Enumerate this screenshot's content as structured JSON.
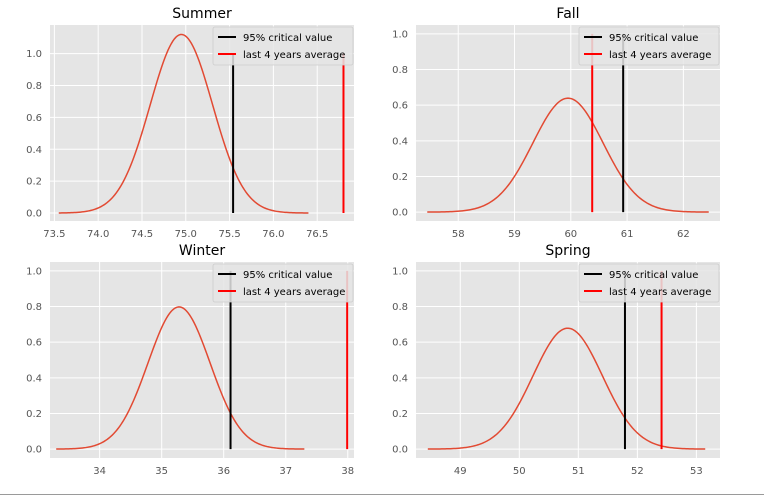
{
  "figure": {
    "colors": {
      "panel_bg": "#e5e5e5",
      "grid": "#ffffff",
      "tick_text": "#555555",
      "title_text": "#000000",
      "curve": "#e24a33",
      "critical": "#000000",
      "average": "#ff0000"
    },
    "legend_labels": [
      "95% critical value",
      "last 4 years average"
    ]
  },
  "chart_data": [
    {
      "type": "line",
      "title": "Summer",
      "xlabel": "",
      "ylabel": "",
      "xlim": [
        73.45,
        76.92
      ],
      "ylim": [
        -0.05,
        1.18
      ],
      "xticks": [
        {
          "v": 73.5,
          "label": "73.5"
        },
        {
          "v": 74.0,
          "label": "74.0"
        },
        {
          "v": 74.5,
          "label": "74.5"
        },
        {
          "v": 75.0,
          "label": "75.0"
        },
        {
          "v": 75.5,
          "label": "75.5"
        },
        {
          "v": 76.0,
          "label": "76.0"
        },
        {
          "v": 76.5,
          "label": "76.5"
        }
      ],
      "yticks": [
        {
          "v": 0,
          "label": "0.0"
        },
        {
          "v": 0.2,
          "label": "0.2"
        },
        {
          "v": 0.4,
          "label": "0.4"
        },
        {
          "v": 0.6,
          "label": "0.6"
        },
        {
          "v": 0.8,
          "label": "0.8"
        },
        {
          "v": 1.0,
          "label": "1.0"
        }
      ],
      "curve": {
        "mean": 74.95,
        "sd": 0.356,
        "x_range": [
          73.55,
          76.4
        ]
      },
      "critical_value": {
        "x": 75.54,
        "y": [
          0,
          1.0
        ]
      },
      "average": {
        "x": 76.8,
        "y": [
          0,
          1.0
        ]
      },
      "legend": "upper right"
    },
    {
      "type": "line",
      "title": "Fall",
      "xlabel": "",
      "ylabel": "",
      "xlim": [
        57.25,
        62.65
      ],
      "ylim": [
        -0.05,
        1.05
      ],
      "xticks": [
        {
          "v": 58,
          "label": "58"
        },
        {
          "v": 59,
          "label": "59"
        },
        {
          "v": 60,
          "label": "60"
        },
        {
          "v": 61,
          "label": "61"
        },
        {
          "v": 62,
          "label": "62"
        }
      ],
      "yticks": [
        {
          "v": 0,
          "label": "0.0"
        },
        {
          "v": 0.2,
          "label": "0.2"
        },
        {
          "v": 0.4,
          "label": "0.4"
        },
        {
          "v": 0.6,
          "label": "0.6"
        },
        {
          "v": 0.8,
          "label": "0.8"
        },
        {
          "v": 1.0,
          "label": "1.0"
        }
      ],
      "curve": {
        "mean": 59.95,
        "sd": 0.624,
        "x_range": [
          57.45,
          62.45
        ]
      },
      "critical_value": {
        "x": 60.93,
        "y": [
          0,
          1.0
        ]
      },
      "average": {
        "x": 60.38,
        "y": [
          0,
          1.0
        ]
      },
      "legend": "upper right"
    },
    {
      "type": "line",
      "title": "Winter",
      "xlabel": "",
      "ylabel": "",
      "xlim": [
        33.2,
        38.1
      ],
      "ylim": [
        -0.05,
        1.05
      ],
      "xticks": [
        {
          "v": 34,
          "label": "34"
        },
        {
          "v": 35,
          "label": "35"
        },
        {
          "v": 36,
          "label": "36"
        },
        {
          "v": 37,
          "label": "37"
        },
        {
          "v": 38,
          "label": "38"
        }
      ],
      "yticks": [
        {
          "v": 0,
          "label": "0.0"
        },
        {
          "v": 0.2,
          "label": "0.2"
        },
        {
          "v": 0.4,
          "label": "0.4"
        },
        {
          "v": 0.6,
          "label": "0.6"
        },
        {
          "v": 0.8,
          "label": "0.8"
        },
        {
          "v": 1.0,
          "label": "1.0"
        }
      ],
      "curve": {
        "mean": 35.28,
        "sd": 0.5,
        "x_range": [
          33.3,
          37.3
        ]
      },
      "critical_value": {
        "x": 36.11,
        "y": [
          0,
          1.0
        ]
      },
      "average": {
        "x": 37.99,
        "y": [
          0,
          1.0
        ]
      },
      "legend": "upper right"
    },
    {
      "type": "line",
      "title": "Spring",
      "xlabel": "",
      "ylabel": "",
      "xlim": [
        48.25,
        53.4
      ],
      "ylim": [
        -0.05,
        1.05
      ],
      "xticks": [
        {
          "v": 49,
          "label": "49"
        },
        {
          "v": 50,
          "label": "50"
        },
        {
          "v": 51,
          "label": "51"
        },
        {
          "v": 52,
          "label": "52"
        },
        {
          "v": 53,
          "label": "53"
        }
      ],
      "yticks": [
        {
          "v": 0,
          "label": "0.0"
        },
        {
          "v": 0.2,
          "label": "0.2"
        },
        {
          "v": 0.4,
          "label": "0.4"
        },
        {
          "v": 0.6,
          "label": "0.6"
        },
        {
          "v": 0.8,
          "label": "0.8"
        },
        {
          "v": 1.0,
          "label": "1.0"
        }
      ],
      "curve": {
        "mean": 50.82,
        "sd": 0.588,
        "x_range": [
          48.45,
          53.15
        ]
      },
      "critical_value": {
        "x": 51.79,
        "y": [
          0,
          1.0
        ]
      },
      "average": {
        "x": 52.41,
        "y": [
          0,
          1.0
        ]
      },
      "legend": "upper right"
    }
  ]
}
